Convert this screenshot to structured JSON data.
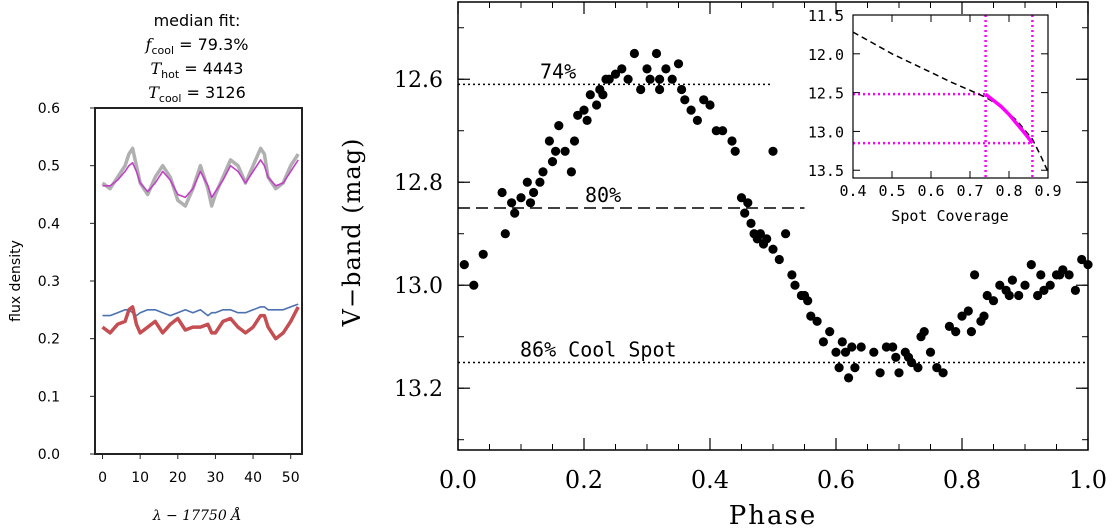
{
  "chart_data": [
    {
      "type": "line",
      "panel": "left",
      "title_lines": [
        "median fit:",
        "f_cool = 79.3%",
        "T_hot = 4443",
        "T_cool = 3126"
      ],
      "title": {
        "heading": "median fit:",
        "fcool_label": "f",
        "fcool_sub": "cool",
        "fcool_value": " = 79.3%",
        "thot_label": "T",
        "thot_sub": "hot",
        "thot_value": " = 4443",
        "tcool_label": "T",
        "tcool_sub": "cool",
        "tcool_value": " = 3126"
      },
      "xlabel": "λ − 17750 Å",
      "ylabel": "flux density",
      "xlim": [
        -2,
        53
      ],
      "ylim": [
        0.0,
        0.6
      ],
      "xticks": [
        0,
        10,
        20,
        30,
        40,
        50
      ],
      "yticks": [
        0.0,
        0.1,
        0.2,
        0.3,
        0.4,
        0.5,
        0.6
      ],
      "x": [
        0,
        2,
        4,
        6,
        7,
        8,
        9,
        10,
        12,
        14,
        16,
        18,
        20,
        22,
        24,
        26,
        28,
        29,
        30,
        32,
        34,
        36,
        38,
        40,
        42,
        43,
        44,
        46,
        48,
        50,
        52
      ],
      "series": [
        {
          "color": "#b0b0b0",
          "values": [
            0.47,
            0.46,
            0.48,
            0.5,
            0.52,
            0.53,
            0.5,
            0.47,
            0.45,
            0.48,
            0.5,
            0.48,
            0.44,
            0.43,
            0.46,
            0.5,
            0.46,
            0.43,
            0.45,
            0.48,
            0.51,
            0.5,
            0.47,
            0.5,
            0.53,
            0.52,
            0.48,
            0.46,
            0.47,
            0.5,
            0.52
          ]
        },
        {
          "color": "#c040c8",
          "values": [
            0.465,
            0.465,
            0.475,
            0.49,
            0.5,
            0.505,
            0.49,
            0.47,
            0.455,
            0.47,
            0.49,
            0.475,
            0.45,
            0.445,
            0.46,
            0.49,
            0.465,
            0.445,
            0.455,
            0.475,
            0.5,
            0.49,
            0.47,
            0.49,
            0.51,
            0.5,
            0.48,
            0.465,
            0.47,
            0.49,
            0.51
          ]
        },
        {
          "color": "#4c72b0",
          "values": [
            0.24,
            0.24,
            0.245,
            0.25,
            0.25,
            0.245,
            0.24,
            0.245,
            0.25,
            0.25,
            0.245,
            0.24,
            0.245,
            0.25,
            0.245,
            0.25,
            0.24,
            0.245,
            0.245,
            0.25,
            0.25,
            0.245,
            0.245,
            0.25,
            0.255,
            0.255,
            0.25,
            0.25,
            0.25,
            0.255,
            0.26
          ]
        },
        {
          "color": "#c44e52",
          "values": [
            0.22,
            0.21,
            0.225,
            0.23,
            0.25,
            0.255,
            0.225,
            0.21,
            0.22,
            0.23,
            0.21,
            0.225,
            0.235,
            0.215,
            0.22,
            0.22,
            0.225,
            0.21,
            0.21,
            0.23,
            0.235,
            0.22,
            0.21,
            0.22,
            0.24,
            0.24,
            0.22,
            0.2,
            0.21,
            0.23,
            0.255
          ]
        }
      ]
    },
    {
      "type": "scatter",
      "panel": "main",
      "xlabel": "Phase",
      "ylabel": "V−band (mag)",
      "xlim": [
        0.0,
        1.0
      ],
      "ylim": [
        13.32,
        12.45
      ],
      "y_inverted": true,
      "xticks": [
        0.0,
        0.2,
        0.4,
        0.6,
        0.8,
        1.0
      ],
      "xtick_labels": [
        "0.0",
        "0.2",
        "0.4",
        "0.6",
        "0.8",
        "1.0"
      ],
      "yticks": [
        12.6,
        12.8,
        13.0,
        13.2
      ],
      "ytick_labels": [
        "12.6",
        "12.8",
        "13.0",
        "13.2"
      ],
      "reference_lines": [
        {
          "y": 12.61,
          "x_end": 0.5,
          "style": "dotted",
          "label": "74%"
        },
        {
          "y": 12.85,
          "x_end": 0.55,
          "style": "dashed",
          "label": "80%"
        },
        {
          "y": 13.15,
          "x_end": 1.0,
          "style": "dotted",
          "label": "86% Cool Spot"
        }
      ],
      "points": [
        [
          0.01,
          12.96
        ],
        [
          0.025,
          13.0
        ],
        [
          0.04,
          12.94
        ],
        [
          0.07,
          12.82
        ],
        [
          0.075,
          12.9
        ],
        [
          0.085,
          12.84
        ],
        [
          0.09,
          12.86
        ],
        [
          0.1,
          12.83
        ],
        [
          0.11,
          12.8
        ],
        [
          0.115,
          12.84
        ],
        [
          0.12,
          12.82
        ],
        [
          0.13,
          12.8
        ],
        [
          0.135,
          12.78
        ],
        [
          0.145,
          12.72
        ],
        [
          0.15,
          12.76
        ],
        [
          0.155,
          12.74
        ],
        [
          0.16,
          12.69
        ],
        [
          0.17,
          12.74
        ],
        [
          0.18,
          12.78
        ],
        [
          0.185,
          12.72
        ],
        [
          0.19,
          12.67
        ],
        [
          0.2,
          12.66
        ],
        [
          0.205,
          12.68
        ],
        [
          0.21,
          12.63
        ],
        [
          0.22,
          12.65
        ],
        [
          0.225,
          12.62
        ],
        [
          0.23,
          12.63
        ],
        [
          0.235,
          12.6
        ],
        [
          0.24,
          12.6
        ],
        [
          0.25,
          12.59
        ],
        [
          0.26,
          12.58
        ],
        [
          0.27,
          12.6
        ],
        [
          0.28,
          12.55
        ],
        [
          0.29,
          12.62
        ],
        [
          0.3,
          12.58
        ],
        [
          0.305,
          12.6
        ],
        [
          0.315,
          12.55
        ],
        [
          0.32,
          12.62
        ],
        [
          0.32,
          12.6
        ],
        [
          0.33,
          12.58
        ],
        [
          0.34,
          12.6
        ],
        [
          0.35,
          12.57
        ],
        [
          0.355,
          12.62
        ],
        [
          0.36,
          12.64
        ],
        [
          0.37,
          12.66
        ],
        [
          0.38,
          12.68
        ],
        [
          0.39,
          12.64
        ],
        [
          0.4,
          12.65
        ],
        [
          0.41,
          12.7
        ],
        [
          0.42,
          12.7
        ],
        [
          0.435,
          12.72
        ],
        [
          0.44,
          12.74
        ],
        [
          0.45,
          12.83
        ],
        [
          0.455,
          12.86
        ],
        [
          0.46,
          12.84
        ],
        [
          0.465,
          12.88
        ],
        [
          0.47,
          12.9
        ],
        [
          0.475,
          12.91
        ],
        [
          0.48,
          12.9
        ],
        [
          0.485,
          12.92
        ],
        [
          0.49,
          12.91
        ],
        [
          0.5,
          12.93
        ],
        [
          0.51,
          12.95
        ],
        [
          0.5,
          12.74
        ],
        [
          0.52,
          12.9
        ],
        [
          0.53,
          12.98
        ],
        [
          0.535,
          13.0
        ],
        [
          0.545,
          13.02
        ],
        [
          0.55,
          13.02
        ],
        [
          0.555,
          13.03
        ],
        [
          0.56,
          13.06
        ],
        [
          0.57,
          13.07
        ],
        [
          0.58,
          13.11
        ],
        [
          0.59,
          13.09
        ],
        [
          0.6,
          13.13
        ],
        [
          0.605,
          13.16
        ],
        [
          0.61,
          13.11
        ],
        [
          0.615,
          13.13
        ],
        [
          0.62,
          13.18
        ],
        [
          0.625,
          13.12
        ],
        [
          0.63,
          13.16
        ],
        [
          0.64,
          13.12
        ],
        [
          0.66,
          13.13
        ],
        [
          0.67,
          13.17
        ],
        [
          0.68,
          13.12
        ],
        [
          0.69,
          13.12
        ],
        [
          0.695,
          13.14
        ],
        [
          0.7,
          13.17
        ],
        [
          0.71,
          13.13
        ],
        [
          0.715,
          13.14
        ],
        [
          0.72,
          13.15
        ],
        [
          0.73,
          13.16
        ],
        [
          0.735,
          13.1
        ],
        [
          0.74,
          13.09
        ],
        [
          0.75,
          13.13
        ],
        [
          0.76,
          13.16
        ],
        [
          0.77,
          13.17
        ],
        [
          0.78,
          13.08
        ],
        [
          0.79,
          13.09
        ],
        [
          0.8,
          13.06
        ],
        [
          0.81,
          13.05
        ],
        [
          0.815,
          13.09
        ],
        [
          0.83,
          13.07
        ],
        [
          0.835,
          13.06
        ],
        [
          0.84,
          13.02
        ],
        [
          0.85,
          13.03
        ],
        [
          0.86,
          13.0
        ],
        [
          0.87,
          13.01
        ],
        [
          0.875,
          13.02
        ],
        [
          0.88,
          12.99
        ],
        [
          0.89,
          13.02
        ],
        [
          0.9,
          13.0
        ],
        [
          0.91,
          12.96
        ],
        [
          0.92,
          13.02
        ],
        [
          0.93,
          13.01
        ],
        [
          0.94,
          13.0
        ],
        [
          0.95,
          12.98
        ],
        [
          0.96,
          12.97
        ],
        [
          0.97,
          12.98
        ],
        [
          0.98,
          13.01
        ],
        [
          0.99,
          12.95
        ],
        [
          1.0,
          12.96
        ],
        [
          0.82,
          12.98
        ],
        [
          0.925,
          12.98
        ],
        [
          0.955,
          12.98
        ]
      ],
      "inset": {
        "type": "line",
        "xlabel": "Spot Coverage",
        "xlim": [
          0.4,
          0.9
        ],
        "ylim": [
          13.6,
          11.5
        ],
        "y_inverted": true,
        "xticks": [
          0.4,
          0.5,
          0.6,
          0.7,
          0.8,
          0.9
        ],
        "xtick_labels": [
          "0.4",
          "0.5",
          "0.6",
          "0.7",
          "0.8",
          "0.9"
        ],
        "yticks": [
          11.5,
          12.0,
          12.5,
          13.0,
          13.5
        ],
        "ytick_labels": [
          "11.5",
          "12.0",
          "12.5",
          "13.0",
          "13.5"
        ],
        "model_curve": {
          "style": "dashed",
          "color": "#000000",
          "x": [
            0.4,
            0.45,
            0.5,
            0.55,
            0.6,
            0.65,
            0.7,
            0.74,
            0.78,
            0.82,
            0.86,
            0.88,
            0.9
          ],
          "y": [
            11.72,
            11.86,
            12.0,
            12.12,
            12.24,
            12.36,
            12.47,
            12.56,
            12.68,
            12.86,
            13.1,
            13.3,
            13.52
          ]
        },
        "highlight_curve": {
          "color": "#ff00ff",
          "x": [
            0.74,
            0.76,
            0.78,
            0.8,
            0.82,
            0.84,
            0.86
          ],
          "y": [
            12.52,
            12.6,
            12.68,
            12.78,
            12.9,
            13.02,
            13.15
          ]
        },
        "markers": [
          {
            "orientation": "vertical",
            "x": 0.74,
            "color": "#ff00ff",
            "style": "dotted"
          },
          {
            "orientation": "vertical",
            "x": 0.86,
            "color": "#ff00ff",
            "style": "dotted"
          },
          {
            "orientation": "horizontal",
            "y": 12.52,
            "color": "#ff00ff",
            "style": "dotted"
          },
          {
            "orientation": "horizontal",
            "y": 13.15,
            "color": "#ff00ff",
            "style": "dotted"
          }
        ]
      }
    }
  ]
}
